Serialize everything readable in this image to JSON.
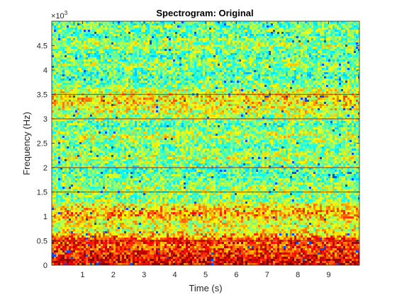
{
  "chart_data": {
    "type": "heatmap",
    "title": "Spectrogram: Original",
    "xlabel": "Time (s)",
    "ylabel": "Frequency (Hz)",
    "xlim": [
      0,
      10
    ],
    "ylim": [
      0,
      5000
    ],
    "xticks": [
      1,
      2,
      3,
      4,
      5,
      6,
      7,
      8,
      9
    ],
    "yticks": [
      0,
      500,
      1000,
      1500,
      2000,
      2500,
      3000,
      3500,
      4000,
      4500
    ],
    "xtick_labels": [
      "1",
      "2",
      "3",
      "4",
      "5",
      "6",
      "7",
      "8",
      "9"
    ],
    "ytick_labels": [
      "0",
      "0.5",
      "1",
      "1.5",
      "2",
      "2.5",
      "3",
      "3.5",
      "4",
      "4.5"
    ],
    "y_exponent": {
      "base": "10",
      "power": "3"
    },
    "colormap": "jet",
    "grid": false,
    "noise_bands": [
      {
        "freq_hz": 0,
        "level": 0.88
      },
      {
        "freq_hz": 100,
        "level": 0.9
      },
      {
        "freq_hz": 250,
        "level": 0.84
      },
      {
        "freq_hz": 420,
        "level": 0.8
      },
      {
        "freq_hz": 500,
        "level": 0.86
      },
      {
        "freq_hz": 600,
        "level": 0.7
      },
      {
        "freq_hz": 750,
        "level": 0.58
      },
      {
        "freq_hz": 900,
        "level": 0.62
      },
      {
        "freq_hz": 1050,
        "level": 0.72
      },
      {
        "freq_hz": 1200,
        "level": 0.64
      },
      {
        "freq_hz": 1350,
        "level": 0.5
      },
      {
        "freq_hz": 1550,
        "level": 0.54
      },
      {
        "freq_hz": 1800,
        "level": 0.48
      },
      {
        "freq_hz": 2000,
        "level": 0.46
      },
      {
        "freq_hz": 2200,
        "level": 0.56
      },
      {
        "freq_hz": 2400,
        "level": 0.47
      },
      {
        "freq_hz": 2650,
        "level": 0.57
      },
      {
        "freq_hz": 2850,
        "level": 0.46
      },
      {
        "freq_hz": 3100,
        "level": 0.56
      },
      {
        "freq_hz": 3300,
        "level": 0.64
      },
      {
        "freq_hz": 3450,
        "level": 0.66
      },
      {
        "freq_hz": 3650,
        "level": 0.52
      },
      {
        "freq_hz": 3900,
        "level": 0.44
      },
      {
        "freq_hz": 4100,
        "level": 0.53
      },
      {
        "freq_hz": 4300,
        "level": 0.45
      },
      {
        "freq_hz": 4500,
        "level": 0.55
      },
      {
        "freq_hz": 4700,
        "level": 0.46
      },
      {
        "freq_hz": 4850,
        "level": 0.5
      },
      {
        "freq_hz": 5000,
        "level": 0.45
      }
    ],
    "tone_lines_hz": [
      500,
      1500,
      2000,
      3000,
      3500
    ]
  }
}
